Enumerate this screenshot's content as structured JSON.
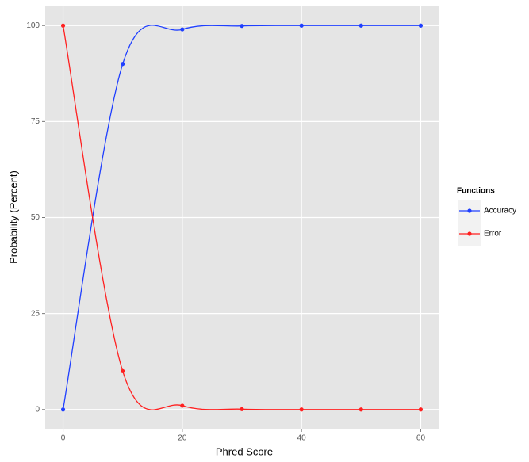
{
  "chart_data": {
    "type": "line",
    "x_label": "Phred Score",
    "y_label": "Probability (Percent)",
    "x": [
      0,
      10,
      20,
      30,
      40,
      50,
      60
    ],
    "series": [
      {
        "name": "Accuracy",
        "color": "#1f3fff",
        "values": [
          0,
          90,
          99,
          99.9,
          99.99,
          99.999,
          99.9999
        ]
      },
      {
        "name": "Error",
        "color": "#ff2020",
        "values": [
          100,
          10,
          1,
          0.1,
          0.01,
          0.001,
          0.0001
        ]
      }
    ],
    "xlim": [
      -3,
      63
    ],
    "xticks": [
      0,
      20,
      40,
      60
    ],
    "ylim": [
      -5,
      105
    ],
    "yticks": [
      0,
      25,
      50,
      75,
      100
    ],
    "grid": true,
    "legend_title": "Functions",
    "legend": "right"
  }
}
